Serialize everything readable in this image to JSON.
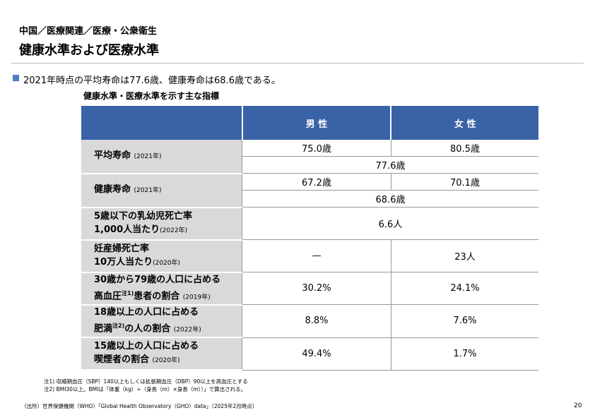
{
  "header": {
    "breadcrumb": "中国／医療関連／医療・公衆衛生",
    "title": "健康水準および医療水準"
  },
  "summary": "2021年時点の平均寿命は77.6歳、健康寿命は68.6歳である。",
  "table": {
    "title": "健康水準・医療水準を示す主な指標",
    "columns": [
      "男 性",
      "女 性"
    ],
    "rows": [
      {
        "name": [
          "平均寿命"
        ],
        "year": "(2021年)",
        "male": "75.0歳",
        "female": "80.5歳",
        "both": "77.6歳"
      },
      {
        "name": [
          "健康寿命"
        ],
        "year": "(2021年)",
        "male": "67.2歳",
        "female": "70.1歳",
        "both": "68.6歳"
      },
      {
        "name": [
          "5歳以下の乳幼児死亡率",
          "1,000人当たり"
        ],
        "year": "(2022年)",
        "both": "6.6人"
      },
      {
        "name": [
          "妊産婦死亡率",
          "10万人当たり"
        ],
        "year": "(2020年)",
        "male": "—",
        "female": "23人"
      },
      {
        "name": [
          "30歳から79歳の人口に占める",
          "高血圧"
        ],
        "sup": "注1)",
        "after_sup": "患者の割合",
        "year": "(2019年)",
        "male": "30.2%",
        "female": "24.1%"
      },
      {
        "name": [
          "18歳以上の人口に占める",
          "肥満"
        ],
        "sup": "注2)",
        "after_sup": "の人の割合",
        "year": "(2022年)",
        "male": "8.8%",
        "female": "7.6%"
      },
      {
        "name": [
          "15歳以上の人口に占める",
          "喫煙者の割合"
        ],
        "year": "(2020年)",
        "male": "49.4%",
        "female": "1.7%"
      }
    ]
  },
  "footnotes": [
    "注1) 収縮期血圧（SBP）140以上もしくは拡張期血圧（DBP）90以上を高血圧とする",
    "注2) BMI30以上。BMIは「体重（kg）÷（身長（m）×身長（m））」で算出される。"
  ],
  "source": "（出所）世界保健機関（WHO）「Global Health Observatory（GHO）data」（2025年2月時点）",
  "page": "20"
}
